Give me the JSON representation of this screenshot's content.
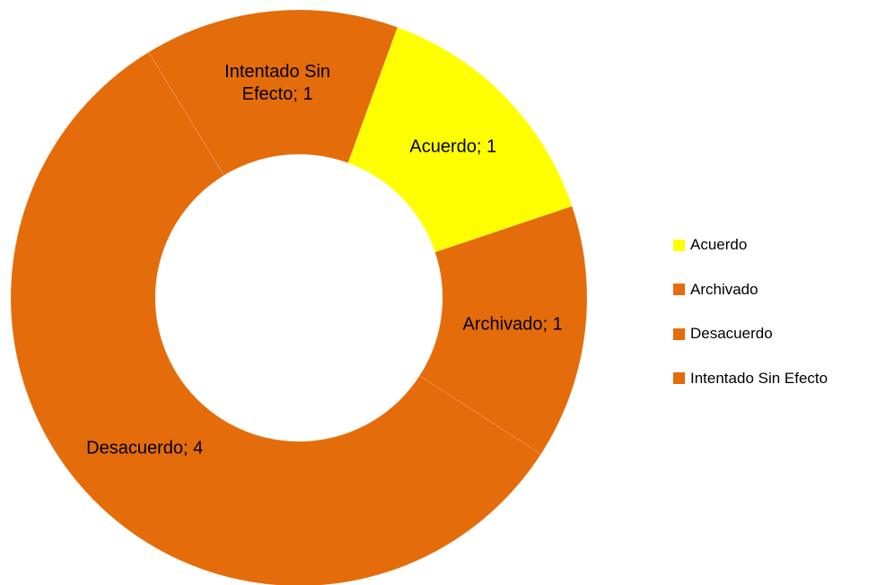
{
  "chart_data": {
    "type": "donut",
    "categories": [
      "Acuerdo",
      "Archivado",
      "Desacuerdo",
      "Intentado Sin Efecto"
    ],
    "values": [
      1,
      1,
      4,
      1
    ],
    "value_labels": [
      "Acuerdo; 1",
      "Archivado; 1",
      "Desacuerdo; 4",
      "Intentado Sin Efecto; 1"
    ],
    "colors": [
      "#ffff00",
      "#e46c0a",
      "#e46c0a",
      "#e46c0a"
    ],
    "legend": "right"
  }
}
